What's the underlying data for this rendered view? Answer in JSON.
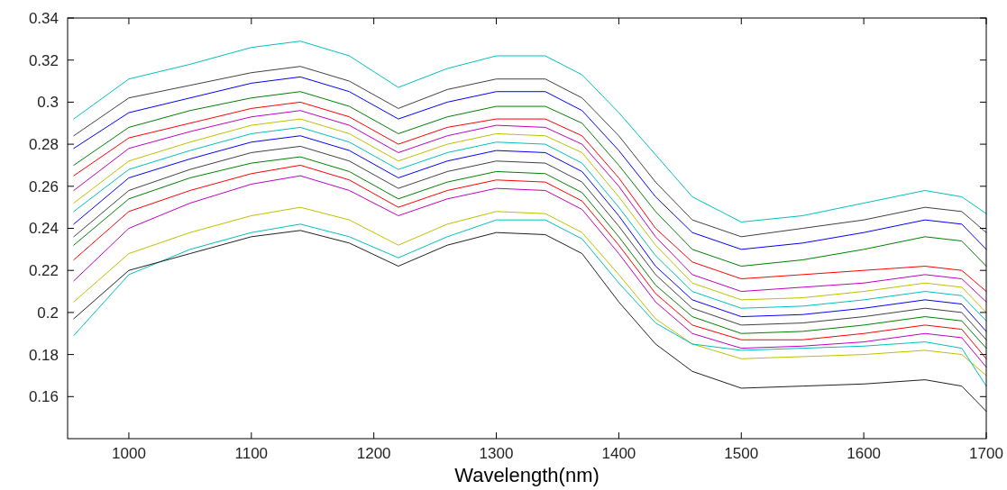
{
  "chart_data": {
    "type": "line",
    "xlabel": "Wavelength(nm)",
    "xlim": [
      950,
      1700
    ],
    "ylim": [
      0.14,
      0.34
    ],
    "xticks": [
      1000,
      1100,
      1200,
      1300,
      1400,
      1500,
      1600,
      1700
    ],
    "yticks": [
      0.16,
      0.18,
      0.2,
      0.22,
      0.24,
      0.26,
      0.28,
      0.3,
      0.32,
      0.34
    ],
    "grid": false,
    "line_style": "solid",
    "x": [
      955,
      1000,
      1050,
      1100,
      1140,
      1180,
      1220,
      1260,
      1300,
      1340,
      1370,
      1400,
      1430,
      1460,
      1500,
      1550,
      1600,
      1650,
      1680,
      1700
    ],
    "series": [
      {
        "color": "#00bfbf",
        "values": [
          0.292,
          0.311,
          0.318,
          0.326,
          0.329,
          0.322,
          0.307,
          0.316,
          0.322,
          0.322,
          0.313,
          0.295,
          0.275,
          0.255,
          0.243,
          0.246,
          0.252,
          0.258,
          0.255,
          0.247
        ]
      },
      {
        "color": "#404040",
        "values": [
          0.284,
          0.302,
          0.308,
          0.314,
          0.317,
          0.31,
          0.297,
          0.306,
          0.311,
          0.311,
          0.302,
          0.284,
          0.262,
          0.244,
          0.236,
          0.24,
          0.244,
          0.25,
          0.248,
          0.238
        ]
      },
      {
        "color": "#0000ff",
        "values": [
          0.278,
          0.295,
          0.302,
          0.309,
          0.312,
          0.305,
          0.292,
          0.3,
          0.305,
          0.305,
          0.296,
          0.277,
          0.255,
          0.238,
          0.23,
          0.233,
          0.238,
          0.244,
          0.242,
          0.23
        ]
      },
      {
        "color": "#008000",
        "values": [
          0.27,
          0.288,
          0.296,
          0.302,
          0.305,
          0.298,
          0.285,
          0.293,
          0.298,
          0.298,
          0.29,
          0.27,
          0.248,
          0.23,
          0.222,
          0.225,
          0.23,
          0.236,
          0.234,
          0.222
        ]
      },
      {
        "color": "#ff0000",
        "values": [
          0.265,
          0.283,
          0.29,
          0.297,
          0.3,
          0.293,
          0.28,
          0.288,
          0.292,
          0.292,
          0.284,
          0.264,
          0.24,
          0.224,
          0.216,
          0.218,
          0.22,
          0.222,
          0.22,
          0.21
        ]
      },
      {
        "color": "#bf00bf",
        "values": [
          0.258,
          0.278,
          0.286,
          0.293,
          0.296,
          0.289,
          0.276,
          0.284,
          0.289,
          0.288,
          0.28,
          0.26,
          0.236,
          0.218,
          0.21,
          0.212,
          0.214,
          0.218,
          0.216,
          0.205
        ]
      },
      {
        "color": "#bfbf00",
        "values": [
          0.252,
          0.272,
          0.281,
          0.289,
          0.292,
          0.285,
          0.272,
          0.28,
          0.285,
          0.284,
          0.276,
          0.255,
          0.232,
          0.214,
          0.206,
          0.207,
          0.21,
          0.214,
          0.212,
          0.2
        ]
      },
      {
        "color": "#00bfbf",
        "values": [
          0.248,
          0.268,
          0.277,
          0.285,
          0.288,
          0.281,
          0.268,
          0.276,
          0.281,
          0.28,
          0.271,
          0.25,
          0.227,
          0.21,
          0.202,
          0.203,
          0.206,
          0.21,
          0.208,
          0.196
        ]
      },
      {
        "color": "#0000ff",
        "values": [
          0.242,
          0.264,
          0.273,
          0.281,
          0.284,
          0.277,
          0.264,
          0.272,
          0.277,
          0.276,
          0.267,
          0.246,
          0.222,
          0.206,
          0.198,
          0.199,
          0.202,
          0.206,
          0.204,
          0.191
        ]
      },
      {
        "color": "#404040",
        "values": [
          0.236,
          0.258,
          0.268,
          0.276,
          0.279,
          0.272,
          0.259,
          0.267,
          0.272,
          0.271,
          0.262,
          0.241,
          0.218,
          0.202,
          0.194,
          0.195,
          0.198,
          0.202,
          0.2,
          0.187
        ]
      },
      {
        "color": "#008000",
        "values": [
          0.232,
          0.254,
          0.264,
          0.271,
          0.274,
          0.267,
          0.254,
          0.262,
          0.267,
          0.266,
          0.257,
          0.236,
          0.213,
          0.198,
          0.19,
          0.191,
          0.194,
          0.198,
          0.196,
          0.183
        ]
      },
      {
        "color": "#ff0000",
        "values": [
          0.225,
          0.248,
          0.258,
          0.266,
          0.27,
          0.263,
          0.25,
          0.258,
          0.263,
          0.262,
          0.253,
          0.232,
          0.209,
          0.194,
          0.187,
          0.187,
          0.19,
          0.194,
          0.192,
          0.178
        ]
      },
      {
        "color": "#bf00bf",
        "values": [
          0.215,
          0.24,
          0.252,
          0.261,
          0.265,
          0.258,
          0.246,
          0.254,
          0.259,
          0.258,
          0.249,
          0.228,
          0.205,
          0.19,
          0.183,
          0.184,
          0.186,
          0.19,
          0.188,
          0.174
        ]
      },
      {
        "color": "#bfbf00",
        "values": [
          0.205,
          0.228,
          0.238,
          0.246,
          0.25,
          0.244,
          0.232,
          0.242,
          0.248,
          0.247,
          0.238,
          0.218,
          0.197,
          0.185,
          0.178,
          0.179,
          0.18,
          0.182,
          0.18,
          0.17
        ]
      },
      {
        "color": "#00bfbf",
        "values": [
          0.189,
          0.218,
          0.23,
          0.238,
          0.242,
          0.236,
          0.226,
          0.236,
          0.244,
          0.244,
          0.235,
          0.214,
          0.195,
          0.185,
          0.182,
          0.183,
          0.184,
          0.186,
          0.183,
          0.165
        ]
      },
      {
        "color": "#202020",
        "values": [
          0.197,
          0.22,
          0.228,
          0.236,
          0.239,
          0.233,
          0.222,
          0.232,
          0.238,
          0.237,
          0.228,
          0.205,
          0.185,
          0.172,
          0.164,
          0.165,
          0.166,
          0.168,
          0.165,
          0.153
        ]
      }
    ]
  }
}
